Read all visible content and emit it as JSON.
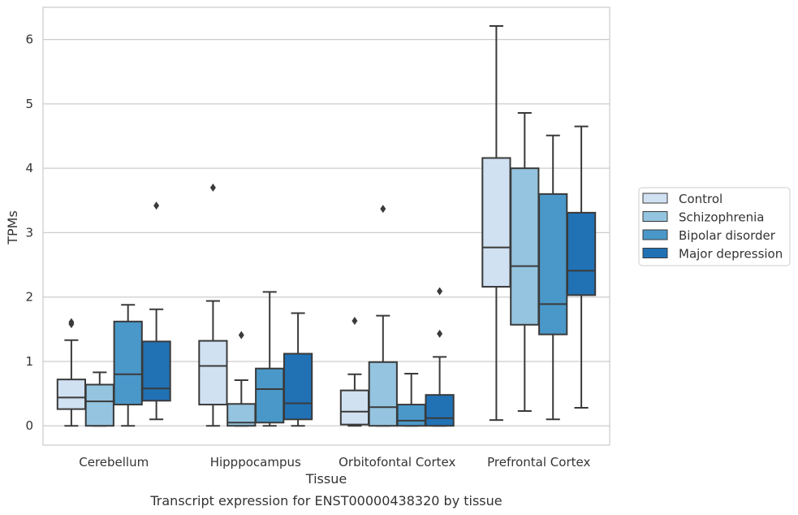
{
  "chart_data": {
    "type": "box",
    "xlabel": "Tissue",
    "ylabel": "TPMs",
    "caption": "Transcript expression for ENST00000438320 by tissue",
    "ylim": [
      -0.3,
      6.5
    ],
    "yticks": [
      0,
      1,
      2,
      3,
      4,
      5,
      6
    ],
    "grid": true,
    "legend_position": "right",
    "categories": [
      "Cerebellum",
      "Hipppocampus",
      "Orbitofontal Cortex",
      "Prefrontal Cortex"
    ],
    "series": [
      {
        "name": "Control",
        "color": "#d0e1f2",
        "boxes": [
          {
            "whislo": 0.0,
            "q1": 0.26,
            "med": 0.44,
            "q3": 0.72,
            "whishi": 1.33,
            "fliers": [
              1.58,
              1.61
            ]
          },
          {
            "whislo": 0.0,
            "q1": 0.33,
            "med": 0.93,
            "q3": 1.32,
            "whishi": 1.94,
            "fliers": [
              3.7
            ]
          },
          {
            "whislo": 0.0,
            "q1": 0.02,
            "med": 0.22,
            "q3": 0.55,
            "whishi": 0.8,
            "fliers": [
              1.63
            ]
          },
          {
            "whislo": 0.09,
            "q1": 2.16,
            "med": 2.77,
            "q3": 4.16,
            "whishi": 6.21,
            "fliers": []
          }
        ]
      },
      {
        "name": "Schizophrenia",
        "color": "#94c4df",
        "boxes": [
          {
            "whislo": 0.0,
            "q1": 0.0,
            "med": 0.38,
            "q3": 0.64,
            "whishi": 0.83,
            "fliers": []
          },
          {
            "whislo": 0.0,
            "q1": 0.0,
            "med": 0.05,
            "q3": 0.34,
            "whishi": 0.71,
            "fliers": [
              1.41
            ]
          },
          {
            "whislo": 0.0,
            "q1": 0.0,
            "med": 0.29,
            "q3": 0.99,
            "whishi": 1.71,
            "fliers": [
              3.37
            ]
          },
          {
            "whislo": 0.23,
            "q1": 1.57,
            "med": 2.48,
            "q3": 4.0,
            "whishi": 4.86,
            "fliers": []
          }
        ]
      },
      {
        "name": "Bipolar disorder",
        "color": "#4a98c9",
        "boxes": [
          {
            "whislo": 0.0,
            "q1": 0.33,
            "med": 0.8,
            "q3": 1.62,
            "whishi": 1.88,
            "fliers": []
          },
          {
            "whislo": 0.0,
            "q1": 0.05,
            "med": 0.57,
            "q3": 0.89,
            "whishi": 2.08,
            "fliers": []
          },
          {
            "whislo": 0.0,
            "q1": 0.0,
            "med": 0.08,
            "q3": 0.33,
            "whishi": 0.81,
            "fliers": []
          },
          {
            "whislo": 0.1,
            "q1": 1.42,
            "med": 1.89,
            "q3": 3.6,
            "whishi": 4.51,
            "fliers": []
          }
        ]
      },
      {
        "name": "Major depression",
        "color": "#2171b5",
        "boxes": [
          {
            "whislo": 0.1,
            "q1": 0.39,
            "med": 0.58,
            "q3": 1.31,
            "whishi": 1.81,
            "fliers": [
              3.42
            ]
          },
          {
            "whislo": 0.0,
            "q1": 0.1,
            "med": 0.35,
            "q3": 1.12,
            "whishi": 1.75,
            "fliers": []
          },
          {
            "whislo": 0.0,
            "q1": 0.0,
            "med": 0.12,
            "q3": 0.48,
            "whishi": 1.07,
            "fliers": [
              1.43,
              2.09
            ]
          },
          {
            "whislo": 0.28,
            "q1": 2.03,
            "med": 2.41,
            "q3": 3.31,
            "whishi": 4.65,
            "fliers": []
          }
        ]
      }
    ]
  }
}
